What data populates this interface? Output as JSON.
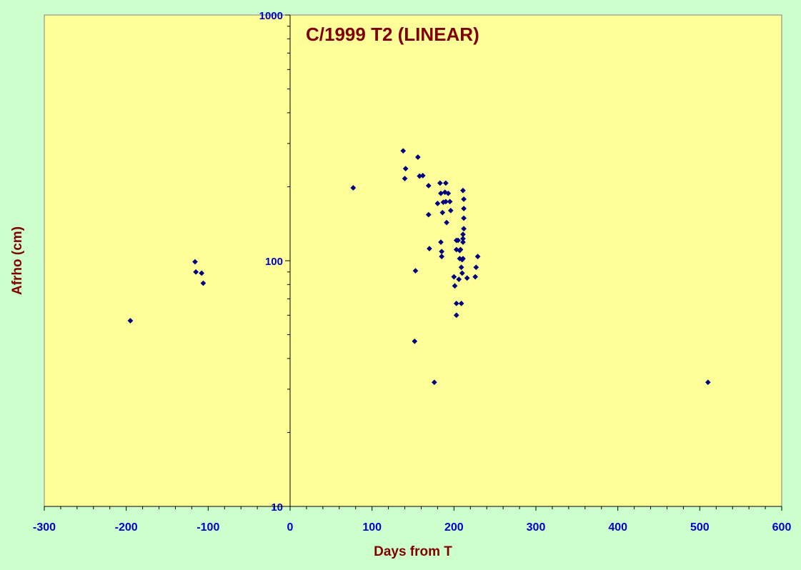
{
  "chart_data": {
    "type": "scatter",
    "title": "C/1999 T2 (LINEAR)",
    "xlabel": "Days from T",
    "ylabel": "Afrho (cm)",
    "xlim": [
      -300,
      600
    ],
    "ylim": [
      10,
      1000
    ],
    "yscale": "log",
    "x_ticks": [
      -300,
      -200,
      -100,
      0,
      100,
      200,
      300,
      400,
      500,
      600
    ],
    "y_ticks": [
      10,
      100,
      1000
    ],
    "grid": false,
    "legend": "none",
    "colors": {
      "background": "#ccffcc",
      "plot_area": "#ffff99",
      "marker": "#000080",
      "title": "#800000",
      "axis_label": "#800000",
      "tick_label": "#0000cc"
    },
    "series": [
      {
        "points": [
          [
            -195,
            57
          ],
          [
            -116,
            99
          ],
          [
            -115,
            90
          ],
          [
            -108,
            89
          ],
          [
            -106,
            81
          ],
          [
            77,
            198
          ],
          [
            138,
            280
          ],
          [
            141,
            237
          ],
          [
            140,
            216
          ],
          [
            152,
            47
          ],
          [
            153,
            91
          ],
          [
            156,
            264
          ],
          [
            158,
            221
          ],
          [
            162,
            222
          ],
          [
            169,
            202
          ],
          [
            169,
            154
          ],
          [
            170,
            112
          ],
          [
            176,
            32
          ],
          [
            180,
            171
          ],
          [
            183,
            207
          ],
          [
            184,
            188
          ],
          [
            184,
            119
          ],
          [
            185,
            104
          ],
          [
            185,
            109
          ],
          [
            186,
            157
          ],
          [
            187,
            173
          ],
          [
            189,
            190
          ],
          [
            190,
            207
          ],
          [
            190,
            174
          ],
          [
            191,
            143
          ],
          [
            193,
            188
          ],
          [
            195,
            174
          ],
          [
            196,
            160
          ],
          [
            200,
            86
          ],
          [
            201,
            79
          ],
          [
            203,
            121
          ],
          [
            203,
            111
          ],
          [
            203,
            60
          ],
          [
            203,
            67
          ],
          [
            205,
            121
          ],
          [
            206,
            84
          ],
          [
            207,
            102
          ],
          [
            207,
            110
          ],
          [
            208,
            111
          ],
          [
            209,
            94
          ],
          [
            209,
            67
          ],
          [
            210,
            101
          ],
          [
            210,
            89
          ],
          [
            211,
            102
          ],
          [
            211,
            119
          ],
          [
            211,
            123
          ],
          [
            211,
            128
          ],
          [
            211,
            193
          ],
          [
            212,
            178
          ],
          [
            212,
            163
          ],
          [
            212,
            149
          ],
          [
            212,
            135
          ],
          [
            216,
            85
          ],
          [
            226,
            86
          ],
          [
            227,
            94
          ],
          [
            229,
            104
          ],
          [
            510,
            32
          ]
        ]
      }
    ]
  }
}
